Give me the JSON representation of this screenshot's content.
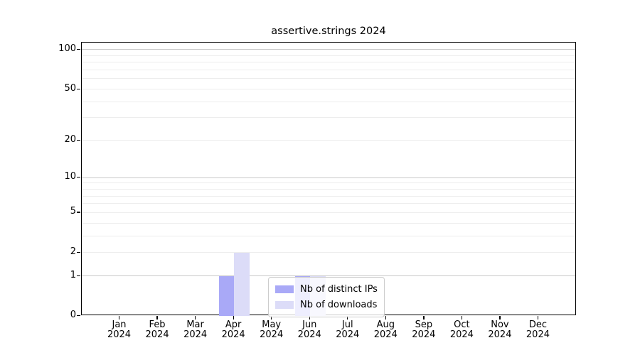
{
  "title": "assertive.strings 2024",
  "chart_data": {
    "type": "bar",
    "categories": [
      {
        "month": "Jan",
        "year": "2024"
      },
      {
        "month": "Feb",
        "year": "2024"
      },
      {
        "month": "Mar",
        "year": "2024"
      },
      {
        "month": "Apr",
        "year": "2024"
      },
      {
        "month": "May",
        "year": "2024"
      },
      {
        "month": "Jun",
        "year": "2024"
      },
      {
        "month": "Jul",
        "year": "2024"
      },
      {
        "month": "Aug",
        "year": "2024"
      },
      {
        "month": "Sep",
        "year": "2024"
      },
      {
        "month": "Oct",
        "year": "2024"
      },
      {
        "month": "Nov",
        "year": "2024"
      },
      {
        "month": "Dec",
        "year": "2024"
      }
    ],
    "series": [
      {
        "name": "Nb of distinct IPs",
        "color": "#a9a9f7",
        "values": [
          0,
          0,
          0,
          1,
          0,
          1,
          0,
          0,
          0,
          0,
          0,
          0
        ]
      },
      {
        "name": "Nb of downloads",
        "color": "#dcdcf8",
        "values": [
          0,
          0,
          0,
          2,
          0,
          1,
          0,
          0,
          0,
          0,
          0,
          0
        ]
      }
    ],
    "title": "assertive.strings 2024",
    "xlabel": "",
    "ylabel": "",
    "yscale": "log1p",
    "ylim": [
      0,
      115
    ],
    "yticks": [
      0,
      1,
      2,
      5,
      10,
      20,
      50,
      100
    ],
    "grid": {
      "on": true,
      "major": [
        1,
        10,
        100
      ],
      "minor": [
        2,
        3,
        4,
        5,
        6,
        7,
        8,
        9,
        20,
        30,
        40,
        50,
        60,
        70,
        80,
        90
      ],
      "major_color": "#c8c8c8",
      "minor_color": "#ededed"
    },
    "legend": {
      "position": "lower center",
      "frame_alpha": 0.8
    }
  }
}
